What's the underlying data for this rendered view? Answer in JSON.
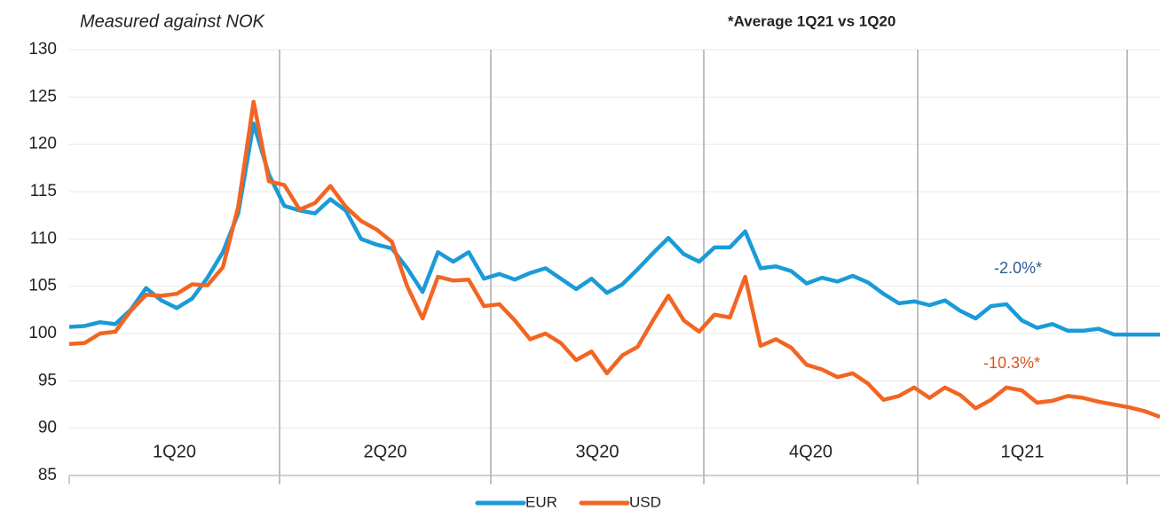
{
  "chart_data": {
    "type": "line",
    "title": "Measured against NOK",
    "note": "*Average 1Q21 vs 1Q20",
    "categories": [
      null,
      null,
      null,
      null,
      null,
      null,
      null,
      null,
      null,
      null,
      null,
      null,
      null,
      null,
      null,
      null,
      null,
      null,
      null,
      null,
      null,
      null,
      null,
      null,
      null,
      null,
      null,
      null,
      null,
      null,
      null,
      null,
      null,
      null,
      null,
      null,
      null,
      null,
      null,
      null,
      null,
      null,
      null,
      null,
      null,
      null,
      null,
      null,
      null,
      null,
      null,
      null,
      null,
      null,
      null,
      null,
      null,
      null,
      null,
      null,
      null,
      null,
      null,
      null,
      null,
      null,
      null,
      null,
      null,
      null,
      null,
      null
    ],
    "periods": [
      "1Q20",
      "2Q20",
      "3Q20",
      "4Q20",
      "1Q21"
    ],
    "series": [
      {
        "name": "EUR",
        "color": "#1a9bd7",
        "values": [
          100.7,
          100.8,
          101.2,
          101.0,
          102.5,
          104.8,
          103.5,
          102.7,
          103.7,
          105.9,
          108.6,
          112.7,
          122.2,
          116.8,
          113.5,
          113.0,
          112.7,
          114.2,
          113.0,
          110.0,
          109.4,
          109.0,
          106.9,
          104.4,
          108.6,
          107.6,
          108.6,
          105.8,
          106.3,
          105.7,
          106.4,
          106.9,
          105.8,
          104.7,
          105.8,
          104.3,
          105.2,
          106.8,
          108.5,
          110.1,
          108.4,
          107.6,
          109.1,
          109.1,
          110.8,
          106.9,
          107.1,
          106.6,
          105.3,
          105.9,
          105.5,
          106.1,
          105.4,
          104.2,
          103.2,
          103.4,
          103.0,
          103.5,
          102.4,
          101.6,
          102.9,
          103.1,
          101.4,
          100.6,
          101.0,
          100.3,
          100.3,
          100.5,
          99.9,
          99.9,
          99.9,
          99.9
        ]
      },
      {
        "name": "USD",
        "color": "#f26522",
        "values": [
          98.9,
          99.0,
          100.0,
          100.2,
          102.4,
          104.1,
          104.0,
          104.2,
          105.2,
          105.1,
          107.0,
          113.4,
          124.5,
          116.1,
          115.7,
          113.1,
          113.8,
          115.6,
          113.4,
          111.9,
          111.0,
          109.7,
          105.0,
          101.6,
          106.0,
          105.6,
          105.7,
          102.9,
          103.1,
          101.4,
          99.4,
          100.0,
          99.0,
          97.2,
          98.1,
          95.8,
          97.7,
          98.6,
          101.4,
          104.0,
          101.4,
          100.2,
          102.0,
          101.7,
          106.0,
          98.7,
          99.4,
          98.5,
          96.7,
          96.2,
          95.4,
          95.8,
          94.7,
          93.0,
          93.4,
          94.3,
          93.2,
          94.3,
          93.5,
          92.1,
          93.0,
          94.3,
          94.0,
          92.7,
          92.9,
          93.4,
          93.2,
          92.8,
          92.5,
          92.2,
          91.8,
          91.2
        ]
      }
    ],
    "annotations": [
      {
        "text": "-2.0%*",
        "color": "#2e5d8f"
      },
      {
        "text": "-10.3%*",
        "color": "#d9541e"
      }
    ],
    "ylim": [
      85,
      130
    ],
    "yticks": [
      85,
      90,
      95,
      100,
      105,
      110,
      115,
      120,
      125,
      130
    ],
    "grid": true,
    "legend": "bottom"
  }
}
